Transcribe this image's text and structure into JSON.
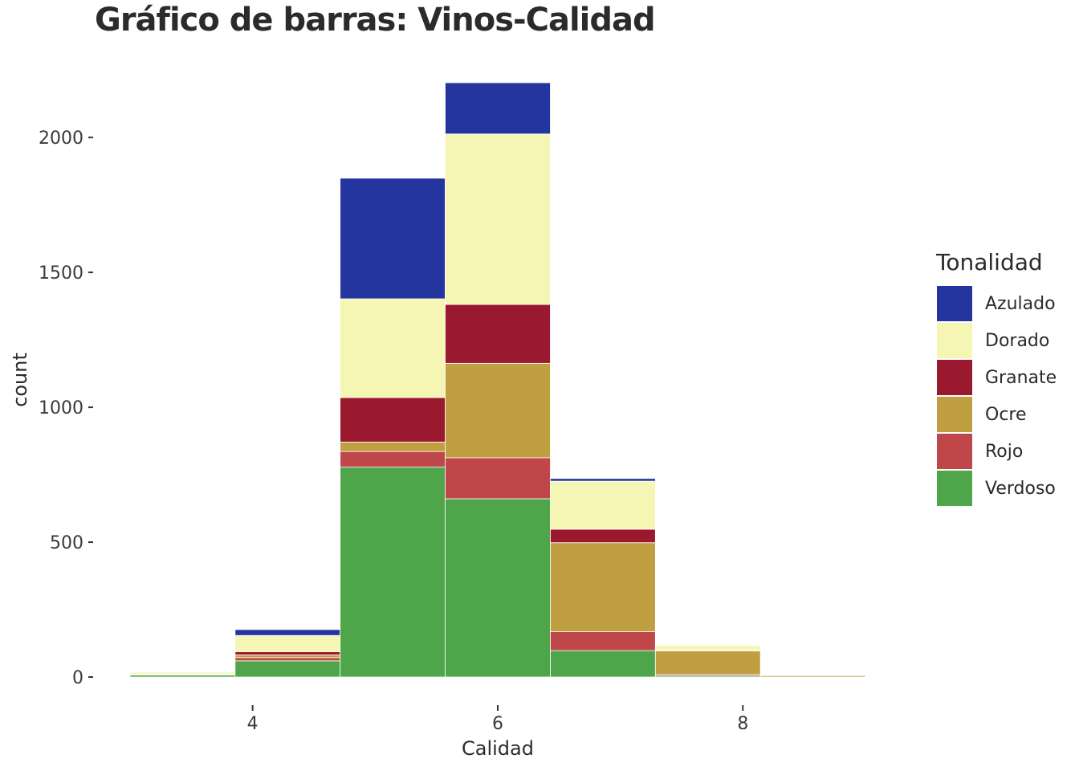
{
  "chart_data": {
    "type": "bar",
    "stacked": true,
    "title": "Gráfico de barras: Vinos-Calidad",
    "xlabel": "Calidad",
    "ylabel": "count",
    "x_ticks": [
      "4",
      "6",
      "8"
    ],
    "y_ticks": [
      "0",
      "500",
      "1000",
      "1500",
      "2000"
    ],
    "xlim": [
      3,
      9
    ],
    "ylim": [
      0,
      2200
    ],
    "bins": [
      {
        "start": 3.0,
        "end": 3.857
      },
      {
        "start": 3.857,
        "end": 4.714
      },
      {
        "start": 4.714,
        "end": 5.571
      },
      {
        "start": 5.571,
        "end": 6.429
      },
      {
        "start": 6.429,
        "end": 7.286
      },
      {
        "start": 7.286,
        "end": 8.143
      },
      {
        "start": 8.143,
        "end": 9.0
      }
    ],
    "legend_title": "Tonalidad",
    "legend_position": "right",
    "grid": false,
    "series": [
      {
        "name": "Verdoso",
        "color": "#4fa64a",
        "values": [
          8,
          60,
          778,
          661,
          98,
          5,
          0
        ]
      },
      {
        "name": "Rojo",
        "color": "#bf474a",
        "values": [
          1,
          12,
          58,
          152,
          70,
          5,
          0
        ]
      },
      {
        "name": "Ocre",
        "color": "#bf9f3f",
        "values": [
          1,
          10,
          35,
          350,
          330,
          87,
          5
        ]
      },
      {
        "name": "Granate",
        "color": "#9b192e",
        "values": [
          1,
          12,
          165,
          218,
          50,
          2,
          0
        ]
      },
      {
        "name": "Dorado",
        "color": "#f5f6b3",
        "values": [
          7,
          60,
          366,
          632,
          178,
          18,
          0
        ]
      },
      {
        "name": "Azulado",
        "color": "#2535a0",
        "values": [
          2,
          22,
          447,
          190,
          10,
          0,
          0
        ]
      }
    ],
    "legend_order": [
      "Azulado",
      "Dorado",
      "Granate",
      "Ocre",
      "Rojo",
      "Verdoso"
    ]
  }
}
